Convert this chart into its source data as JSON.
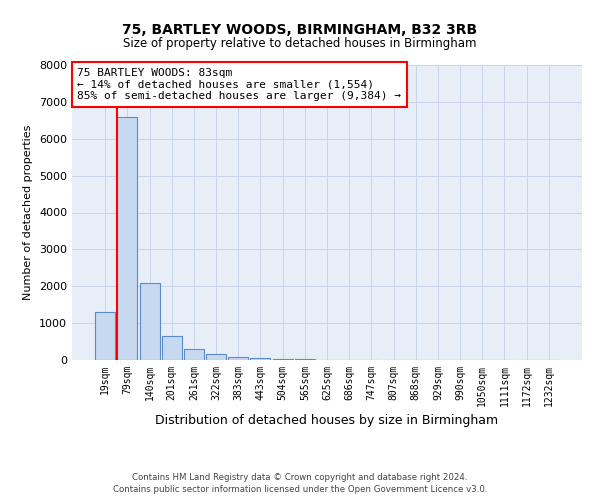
{
  "title1": "75, BARTLEY WOODS, BIRMINGHAM, B32 3RB",
  "title2": "Size of property relative to detached houses in Birmingham",
  "xlabel": "Distribution of detached houses by size in Birmingham",
  "ylabel": "Number of detached properties",
  "categories": [
    "19sqm",
    "79sqm",
    "140sqm",
    "201sqm",
    "261sqm",
    "322sqm",
    "383sqm",
    "443sqm",
    "504sqm",
    "565sqm",
    "625sqm",
    "686sqm",
    "747sqm",
    "807sqm",
    "868sqm",
    "929sqm",
    "990sqm",
    "1050sqm",
    "1111sqm",
    "1172sqm",
    "1232sqm"
  ],
  "values": [
    1300,
    6600,
    2100,
    650,
    300,
    150,
    80,
    60,
    40,
    20,
    10,
    5,
    3,
    2,
    1,
    1,
    1,
    1,
    0,
    0,
    0
  ],
  "bar_color": "#c6d9f0",
  "bar_edge_color": "#5b8bc9",
  "ylim": [
    0,
    8000
  ],
  "yticks": [
    0,
    1000,
    2000,
    3000,
    4000,
    5000,
    6000,
    7000,
    8000
  ],
  "annotation_line1": "75 BARTLEY WOODS: 83sqm",
  "annotation_line2": "← 14% of detached houses are smaller (1,554)",
  "annotation_line3": "85% of semi-detached houses are larger (9,384) →",
  "red_line_bar_index": 1,
  "grid_color": "#c8d4e8",
  "background_color": "#e8eef8",
  "footer1": "Contains HM Land Registry data © Crown copyright and database right 2024.",
  "footer2": "Contains public sector information licensed under the Open Government Licence v3.0."
}
